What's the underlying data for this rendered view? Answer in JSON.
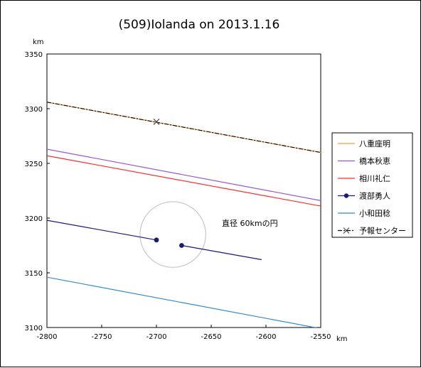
{
  "chart_data": {
    "type": "line",
    "title": "(509)Iolanda on 2013.1.16",
    "x_unit": "km",
    "y_unit": "km",
    "xlim": [
      -2800,
      -2550
    ],
    "ylim": [
      3100,
      3350
    ],
    "x_ticks": [
      "-2800",
      "-2750",
      "-2700",
      "-2650",
      "-2600",
      "-2550"
    ],
    "y_ticks": [
      "3100",
      "3150",
      "3200",
      "3250",
      "3300",
      "3350"
    ],
    "grid": false,
    "legend_position": "right",
    "series": [
      {
        "name": "八重座明",
        "color": "#ff9933",
        "style": "line",
        "x": [
          -2800,
          -2550
        ],
        "y": [
          3306,
          3260
        ]
      },
      {
        "name": "橋本秋恵",
        "color": "#9955cc",
        "style": "line",
        "x": [
          -2800,
          -2550
        ],
        "y": [
          3263,
          3216
        ]
      },
      {
        "name": "相川礼仁",
        "color": "#ff2a2a",
        "style": "line",
        "x": [
          -2800,
          -2550
        ],
        "y": [
          3257,
          3211
        ]
      },
      {
        "name": "渡部勇人",
        "color": "#1a1a7a",
        "style": "line-points",
        "segments": [
          {
            "x": [
              -2800,
              -2700
            ],
            "y": [
              3198,
              3180
            ]
          },
          {
            "x": [
              -2677,
              -2604
            ],
            "y": [
              3175,
              3162
            ]
          }
        ],
        "points": {
          "x": [
            -2700,
            -2677
          ],
          "y": [
            3180,
            3175
          ]
        }
      },
      {
        "name": "小和田稔",
        "color": "#3388cc",
        "style": "line",
        "x": [
          -2800,
          -2550
        ],
        "y": [
          3146,
          3099
        ]
      },
      {
        "name": "予報センター",
        "color": "#000000",
        "style": "dashdot-marker",
        "x": [
          -2800,
          -2550
        ],
        "y": [
          3306,
          3260
        ],
        "marker": {
          "x": -2700,
          "y": 3288
        }
      }
    ],
    "circle": {
      "label": "直径 60kmの円",
      "cx": -2685,
      "cy": 3185,
      "r": 30,
      "color": "#c8c8c8"
    }
  }
}
